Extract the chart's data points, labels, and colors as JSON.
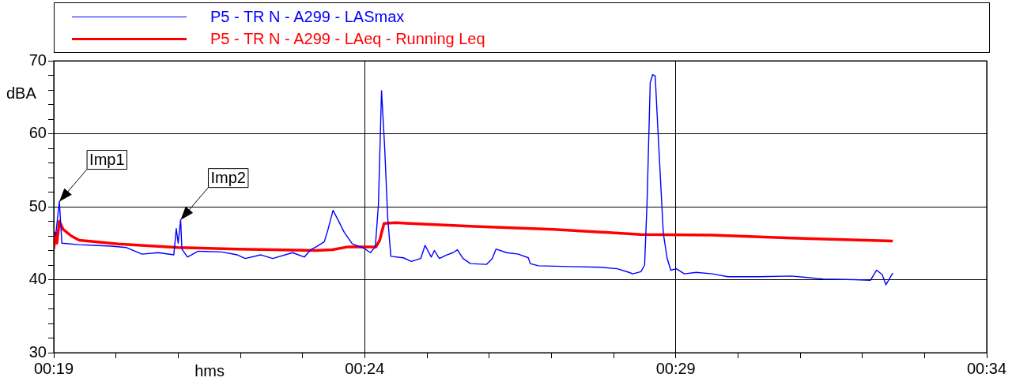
{
  "chart_data": {
    "type": "line",
    "xlabel": "hms",
    "ylabel": "dBA",
    "legend": "top",
    "grid": true,
    "xlim": [
      19,
      34
    ],
    "ylim": [
      30,
      70
    ],
    "xticks": [
      {
        "value": 19,
        "label": "00:19"
      },
      {
        "value": 20,
        "label": null
      },
      {
        "value": 21,
        "label": null
      },
      {
        "value": 22,
        "label": null
      },
      {
        "value": 23,
        "label": null
      },
      {
        "value": 24,
        "label": "00:24"
      },
      {
        "value": 25,
        "label": null
      },
      {
        "value": 26,
        "label": null
      },
      {
        "value": 27,
        "label": null
      },
      {
        "value": 28,
        "label": null
      },
      {
        "value": 29,
        "label": "00:29"
      },
      {
        "value": 30,
        "label": null
      },
      {
        "value": 31,
        "label": null
      },
      {
        "value": 32,
        "label": null
      },
      {
        "value": 33,
        "label": null
      },
      {
        "value": 34,
        "label": "00:34"
      }
    ],
    "yticks": [
      30,
      {
        "value": 32,
        "label": null
      },
      {
        "value": 34,
        "label": null
      },
      {
        "value": 36,
        "label": null
      },
      {
        "value": 38,
        "label": null
      },
      40,
      {
        "value": 42,
        "label": null
      },
      {
        "value": 44,
        "label": null
      },
      {
        "value": 46,
        "label": null
      },
      {
        "value": 48,
        "label": null
      },
      50,
      {
        "value": 52,
        "label": null
      },
      {
        "value": 54,
        "label": null
      },
      {
        "value": 56,
        "label": null
      },
      {
        "value": 58,
        "label": null
      },
      60,
      {
        "value": 62,
        "label": null
      },
      {
        "value": 64,
        "label": null
      },
      {
        "value": 66,
        "label": null
      },
      {
        "value": 68,
        "label": null
      },
      70
    ],
    "annotations": [
      {
        "text": "Imp1",
        "x": 19.09,
        "y": 50.7
      },
      {
        "text": "Imp2",
        "x": 21.04,
        "y": 48.2
      }
    ],
    "series": [
      {
        "name": "P5 - TR N - A299 - LASmax",
        "color": "#0000ff",
        "x": [
          19.03,
          19.09,
          19.13,
          19.41,
          19.66,
          19.92,
          20.17,
          20.42,
          20.68,
          20.93,
          20.97,
          21.0,
          21.04,
          21.06,
          21.15,
          21.32,
          21.7,
          21.95,
          22.08,
          22.33,
          22.52,
          22.84,
          23.03,
          23.13,
          23.22,
          23.35,
          23.41,
          23.49,
          23.57,
          23.67,
          23.8,
          23.99,
          24.09,
          24.17,
          24.22,
          24.27,
          24.32,
          24.37,
          24.42,
          24.62,
          24.75,
          24.9,
          24.97,
          25.07,
          25.12,
          25.2,
          25.32,
          25.42,
          25.49,
          25.58,
          25.7,
          25.96,
          26.05,
          26.11,
          26.28,
          26.47,
          26.63,
          26.66,
          26.79,
          27.3,
          27.8,
          28.06,
          28.25,
          28.31,
          28.44,
          28.5,
          28.54,
          28.59,
          28.63,
          28.67,
          28.72,
          28.8,
          28.86,
          28.92,
          29.01,
          29.14,
          29.33,
          29.59,
          29.84,
          30.35,
          30.86,
          31.37,
          31.88,
          32.13,
          32.23,
          32.32,
          32.38,
          32.49
        ],
        "values": [
          46.0,
          50.7,
          45.0,
          44.8,
          44.7,
          44.6,
          44.4,
          43.5,
          43.7,
          43.4,
          47.0,
          45.0,
          48.2,
          44.2,
          43.1,
          43.9,
          43.8,
          43.4,
          42.9,
          43.4,
          42.9,
          43.7,
          43.1,
          44.1,
          44.5,
          45.2,
          46.9,
          49.5,
          48.2,
          46.5,
          44.9,
          44.3,
          43.7,
          44.5,
          50.3,
          65.9,
          58.2,
          48.4,
          43.2,
          43.0,
          42.5,
          42.9,
          44.7,
          43.1,
          44.0,
          42.9,
          43.4,
          43.7,
          44.1,
          42.9,
          42.2,
          42.1,
          42.9,
          44.2,
          43.7,
          43.5,
          43.0,
          42.2,
          41.9,
          41.8,
          41.7,
          41.5,
          41.0,
          40.8,
          41.1,
          42.0,
          50.8,
          67.0,
          68.1,
          67.9,
          59.5,
          46.4,
          43.0,
          41.3,
          41.5,
          40.8,
          41.0,
          40.8,
          40.4,
          40.4,
          40.5,
          40.1,
          40.0,
          39.9,
          41.3,
          40.7,
          39.3,
          40.9
        ]
      },
      {
        "name": "P5 - TR N - A299 - LAeq - Running Leq",
        "color": "#ff0000",
        "x": [
          19.0,
          19.03,
          19.05,
          19.09,
          19.15,
          19.28,
          19.41,
          20.04,
          21.0,
          21.95,
          23.22,
          23.48,
          23.73,
          24.18,
          24.24,
          24.31,
          24.5,
          25.77,
          27.04,
          28.44,
          29.59,
          30.86,
          32.49
        ],
        "values": [
          44.2,
          46.4,
          45.0,
          48.0,
          46.9,
          46.0,
          45.4,
          44.9,
          44.4,
          44.2,
          44.0,
          44.1,
          44.5,
          44.5,
          45.4,
          47.7,
          47.8,
          47.3,
          46.9,
          46.2,
          46.1,
          45.7,
          45.3
        ]
      }
    ]
  }
}
